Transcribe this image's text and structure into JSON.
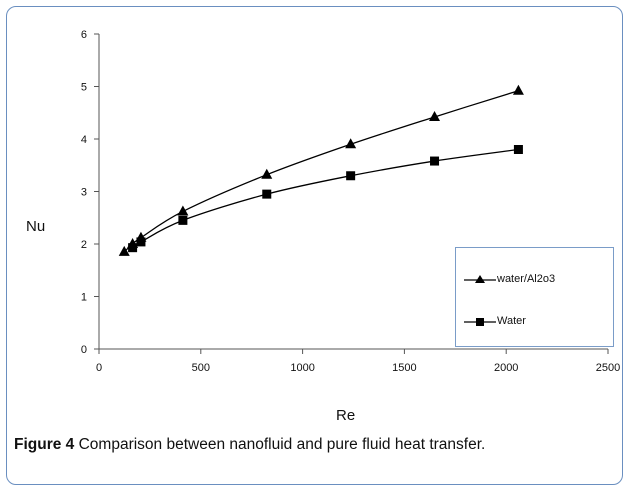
{
  "chart_data": {
    "type": "line",
    "xlabel": "Re",
    "ylabel": "Nu",
    "xlim": [
      0,
      2500
    ],
    "ylim": [
      0,
      6
    ],
    "xticks": [
      0,
      500,
      1000,
      1500,
      2000,
      2500
    ],
    "yticks": [
      0,
      1,
      2,
      3,
      4,
      5,
      6
    ],
    "grid": false,
    "legend_position": "lower-right",
    "series": [
      {
        "name": "water/Al2o3",
        "marker": "triangle",
        "color": "#000000",
        "x": [
          124,
          165,
          206,
          412,
          824,
          1236,
          1648,
          2060
        ],
        "y": [
          1.85,
          2.0,
          2.12,
          2.62,
          3.32,
          3.9,
          4.42,
          4.92
        ]
      },
      {
        "name": "Water",
        "marker": "square",
        "color": "#000000",
        "x": [
          165,
          206,
          412,
          824,
          1236,
          1648,
          2060
        ],
        "y": [
          1.93,
          2.04,
          2.45,
          2.95,
          3.3,
          3.58,
          3.8
        ]
      }
    ]
  },
  "caption": {
    "figure_label": "Figure 4",
    "text": "Comparison between nanofluid and pure fluid heat transfer",
    "period": "."
  }
}
